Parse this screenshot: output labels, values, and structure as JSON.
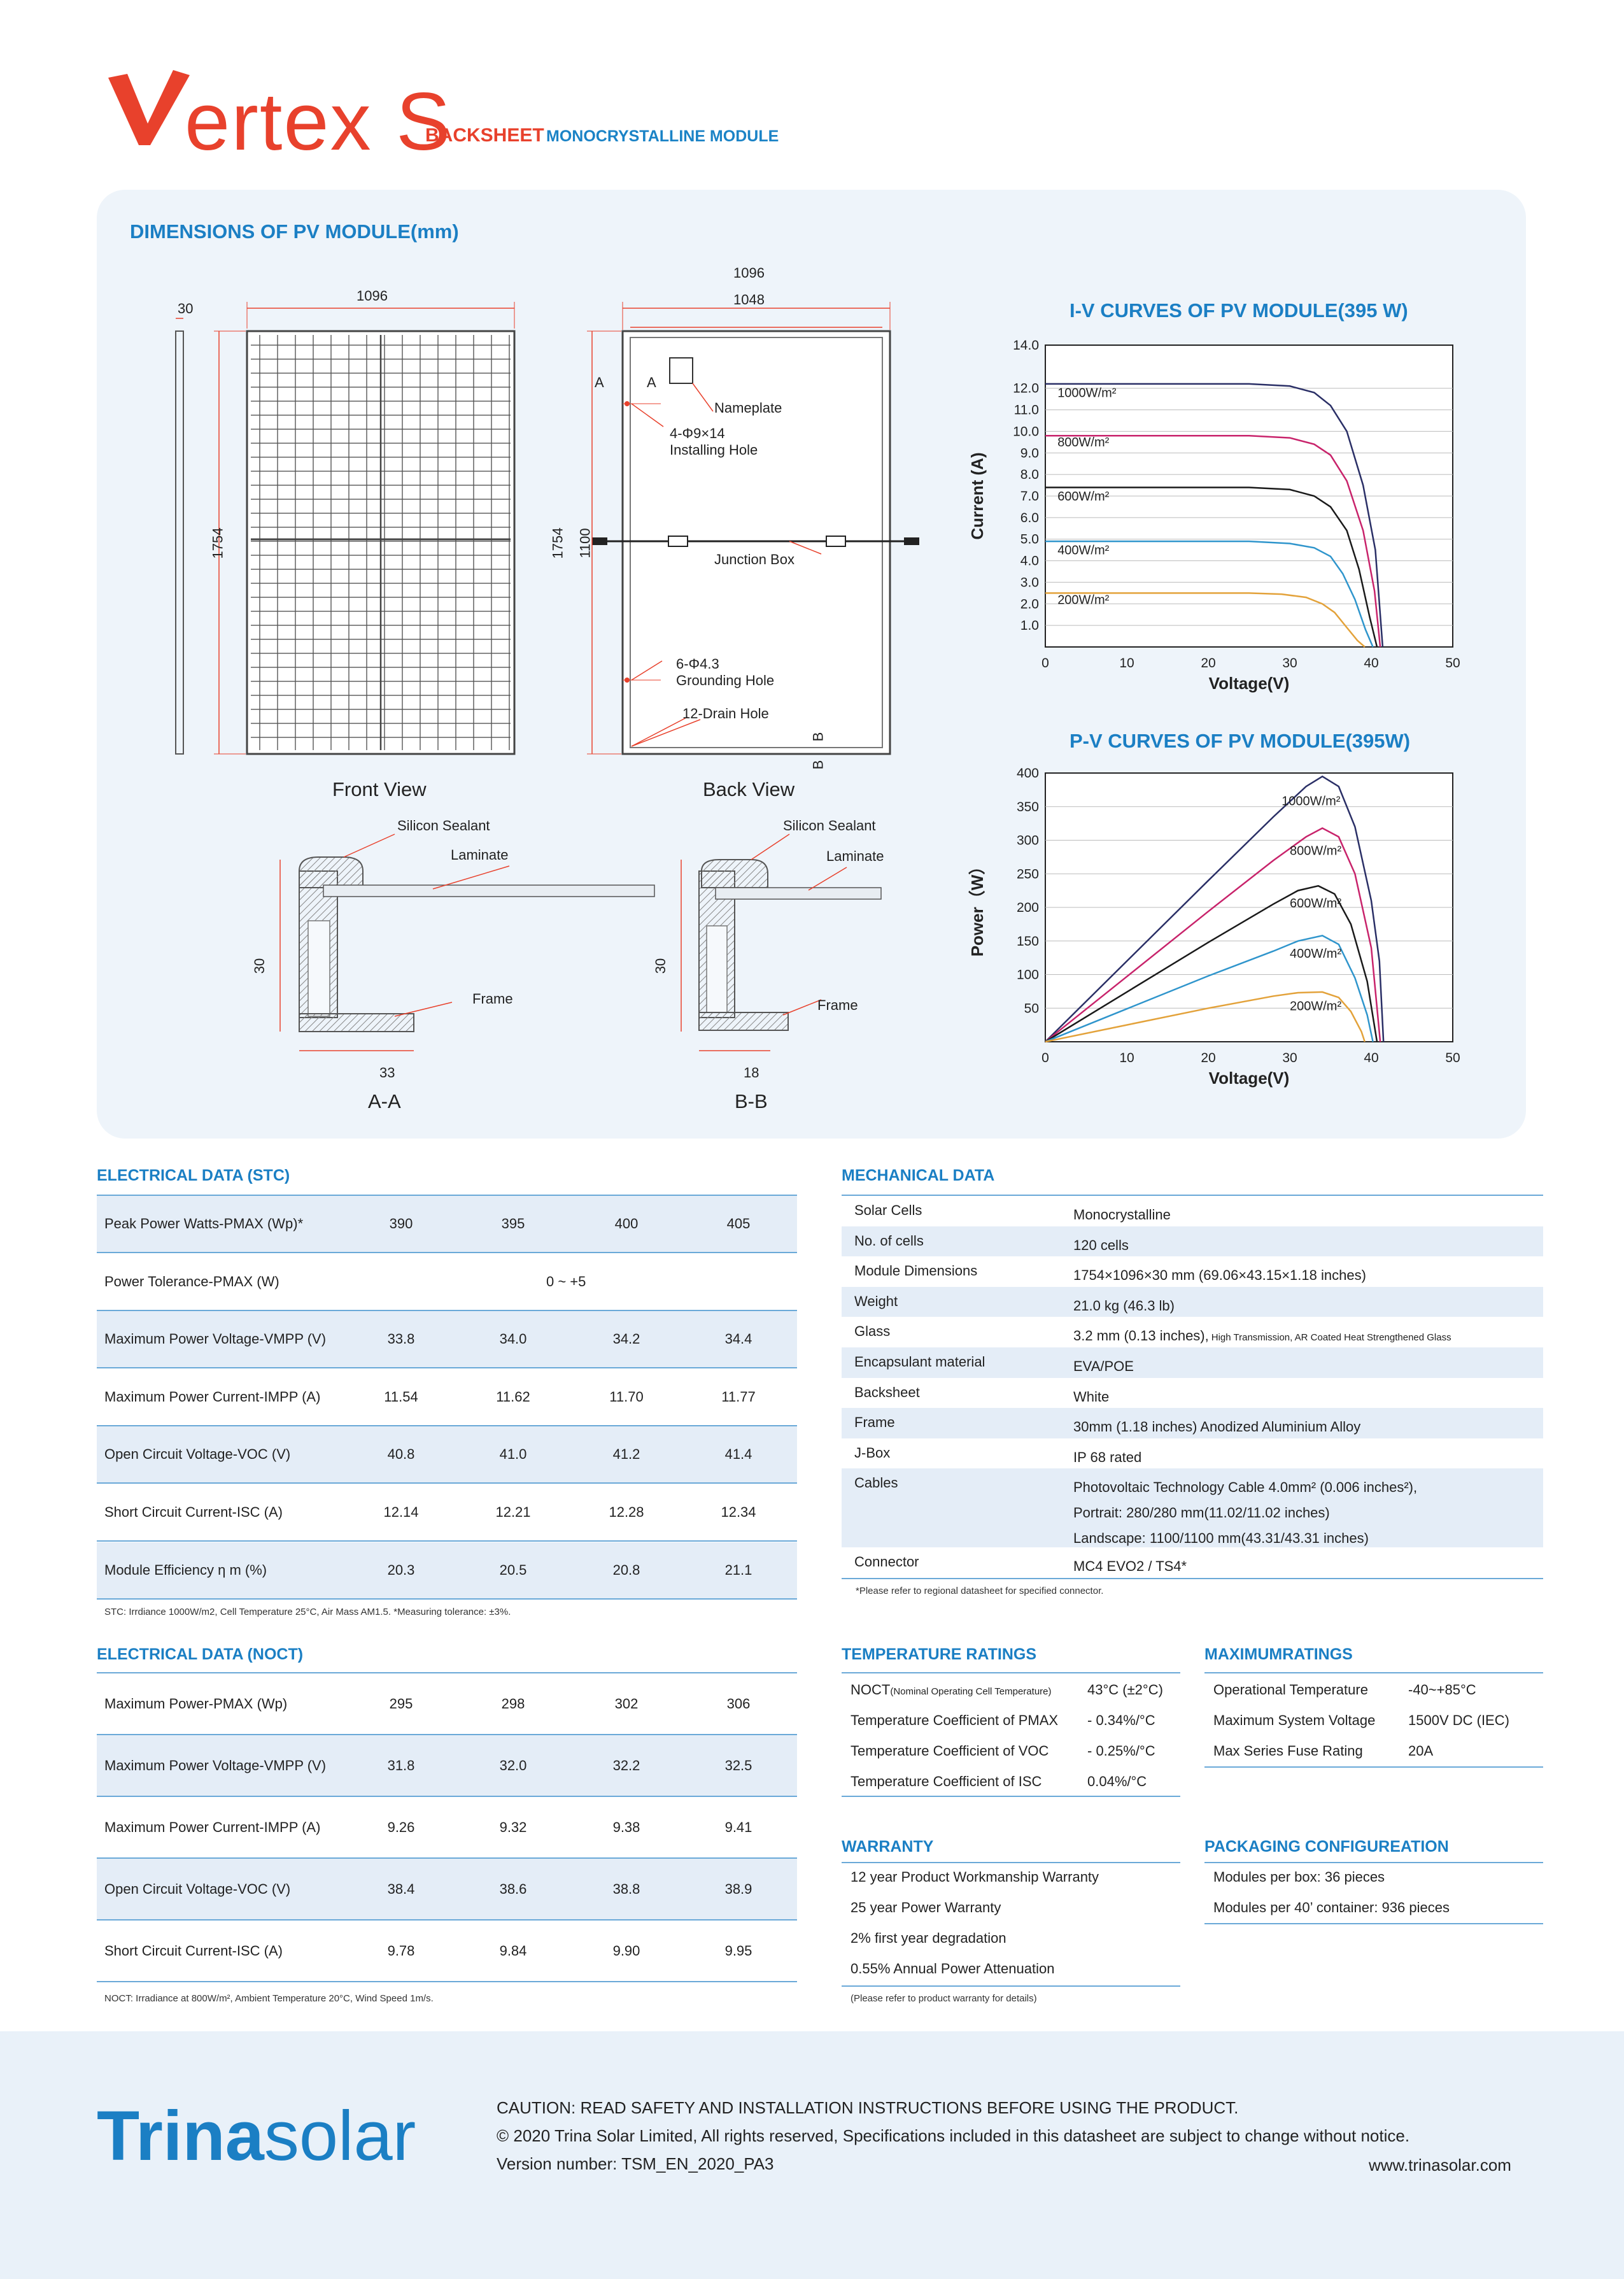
{
  "header": {
    "brand": "ertex S",
    "product_type_red": "BACKSHEET",
    "product_type_blue": "MONOCRYSTALLINE MODULE"
  },
  "dimensions": {
    "title": "DIMENSIONS OF PV MODULE(mm)",
    "front_width": "1096",
    "side_thickness": "30",
    "front_height": "1754",
    "back_outer_width": "1096",
    "back_inner_width": "1048",
    "back_height": "1754",
    "back_hole_span": "1100",
    "section_a_top": "A",
    "section_a_bot": "A",
    "section_b_top": "B",
    "section_b_bot": "B",
    "nameplate": "Nameplate",
    "installing_hole_spec": "4-Φ9×14",
    "installing_hole": "Installing Hole",
    "junction_box": "Junction Box",
    "grounding_hole_spec": "6-Φ4.3",
    "grounding_hole": "Grounding Hole",
    "drain_hole": "12-Drain Hole",
    "front_view": "Front View",
    "back_view": "Back View",
    "aa": {
      "sealant": "Silicon Sealant",
      "laminate": "Laminate",
      "frame": "Frame",
      "height": "30",
      "width": "33",
      "caption": "A-A"
    },
    "bb": {
      "sealant": "Silicon Sealant",
      "laminate": "Laminate",
      "frame": "Frame",
      "height": "30",
      "width": "18",
      "caption": "B-B"
    }
  },
  "chart_data": [
    {
      "type": "line",
      "title": "I-V CURVES OF PV MODULE(395 W)",
      "xlabel": "Voltage(V)",
      "ylabel": "Current (A)",
      "xlim": [
        0,
        50
      ],
      "ylim": [
        0,
        14
      ],
      "xticks": [
        "0",
        "10",
        "20",
        "30",
        "40",
        "50"
      ],
      "yticks": [
        "1.0",
        "2.0",
        "3.0",
        "4.0",
        "5.0",
        "6.0",
        "7.0",
        "8.0",
        "9.0",
        "10.0",
        "11.0",
        "12.0",
        "14.0"
      ],
      "grid": true,
      "series": [
        {
          "name": "1000W/m²",
          "color": "#2a2f66",
          "points": [
            [
              0,
              12.2
            ],
            [
              25,
              12.2
            ],
            [
              30,
              12.1
            ],
            [
              33,
              11.8
            ],
            [
              35,
              11.2
            ],
            [
              37,
              10.0
            ],
            [
              39,
              7.5
            ],
            [
              40.5,
              4.5
            ],
            [
              41.4,
              0
            ]
          ]
        },
        {
          "name": "800W/m²",
          "color": "#c8236b",
          "points": [
            [
              0,
              9.8
            ],
            [
              25,
              9.8
            ],
            [
              30,
              9.7
            ],
            [
              33,
              9.4
            ],
            [
              35,
              8.9
            ],
            [
              37,
              7.7
            ],
            [
              39,
              5.4
            ],
            [
              40.4,
              2.6
            ],
            [
              41.1,
              0
            ]
          ]
        },
        {
          "name": "600W/m²",
          "color": "#1a1a1a",
          "points": [
            [
              0,
              7.4
            ],
            [
              25,
              7.4
            ],
            [
              30,
              7.3
            ],
            [
              33,
              7.0
            ],
            [
              35,
              6.5
            ],
            [
              37,
              5.4
            ],
            [
              38.5,
              3.6
            ],
            [
              39.8,
              1.4
            ],
            [
              40.7,
              0
            ]
          ]
        },
        {
          "name": "400W/m²",
          "color": "#2f95cc",
          "points": [
            [
              0,
              4.9
            ],
            [
              25,
              4.9
            ],
            [
              30,
              4.8
            ],
            [
              33,
              4.6
            ],
            [
              35,
              4.2
            ],
            [
              36.5,
              3.4
            ],
            [
              38,
              2.2
            ],
            [
              39.3,
              0.8
            ],
            [
              40.2,
              0
            ]
          ]
        },
        {
          "name": "200W/m²",
          "color": "#e3a23a",
          "points": [
            [
              0,
              2.5
            ],
            [
              25,
              2.5
            ],
            [
              29,
              2.45
            ],
            [
              32,
              2.3
            ],
            [
              34,
              2.0
            ],
            [
              35.5,
              1.6
            ],
            [
              37,
              0.9
            ],
            [
              38.3,
              0.3
            ],
            [
              39.2,
              0
            ]
          ]
        }
      ]
    },
    {
      "type": "line",
      "title": "P-V CURVES OF PV MODULE(395W)",
      "xlabel": "Voltage(V)",
      "ylabel": "Power（W）",
      "xlim": [
        0,
        50
      ],
      "ylim": [
        0,
        400
      ],
      "xticks": [
        "0",
        "10",
        "20",
        "30",
        "40",
        "50"
      ],
      "yticks": [
        "50",
        "100",
        "150",
        "200",
        "250",
        "300",
        "350",
        "400"
      ],
      "grid": true,
      "series": [
        {
          "name": "1000W/m²",
          "color": "#2a2f66",
          "points": [
            [
              0,
              0
            ],
            [
              10,
              120
            ],
            [
              20,
              240
            ],
            [
              28,
              335
            ],
            [
              32,
              380
            ],
            [
              34,
              395
            ],
            [
              36,
              380
            ],
            [
              38,
              320
            ],
            [
              40,
              210
            ],
            [
              41,
              120
            ],
            [
              41.5,
              0
            ]
          ]
        },
        {
          "name": "800W/m²",
          "color": "#c8236b",
          "points": [
            [
              0,
              0
            ],
            [
              10,
              97
            ],
            [
              20,
              194
            ],
            [
              28,
              270
            ],
            [
              32,
              305
            ],
            [
              34,
              318
            ],
            [
              36,
              305
            ],
            [
              38,
              250
            ],
            [
              40,
              140
            ],
            [
              41.1,
              0
            ]
          ]
        },
        {
          "name": "600W/m²",
          "color": "#1a1a1a",
          "points": [
            [
              0,
              0
            ],
            [
              10,
              74
            ],
            [
              20,
              148
            ],
            [
              28,
              205
            ],
            [
              31,
              225
            ],
            [
              33.5,
              232
            ],
            [
              35.5,
              220
            ],
            [
              37.5,
              175
            ],
            [
              39.5,
              90
            ],
            [
              40.7,
              0
            ]
          ]
        },
        {
          "name": "400W/m²",
          "color": "#2f95cc",
          "points": [
            [
              0,
              0
            ],
            [
              10,
              49
            ],
            [
              20,
              98
            ],
            [
              28,
              135
            ],
            [
              31,
              150
            ],
            [
              34,
              158
            ],
            [
              36,
              145
            ],
            [
              38,
              95
            ],
            [
              39.5,
              40
            ],
            [
              40.2,
              0
            ]
          ]
        },
        {
          "name": "200W/m²",
          "color": "#e3a23a",
          "points": [
            [
              0,
              0
            ],
            [
              10,
              25
            ],
            [
              20,
              50
            ],
            [
              28,
              68
            ],
            [
              31,
              73
            ],
            [
              34,
              74
            ],
            [
              36,
              66
            ],
            [
              37.5,
              45
            ],
            [
              38.8,
              15
            ],
            [
              39.2,
              0
            ]
          ]
        }
      ]
    }
  ],
  "electrical_stc": {
    "title": "ELECTRICAL DATA (STC)",
    "rows": [
      {
        "label": "Peak Power Watts-PMAX (Wp)*",
        "values": [
          "390",
          "395",
          "400",
          "405"
        ]
      },
      {
        "label": "Power Tolerance-PMAX (W)",
        "span": "0 ~ +5"
      },
      {
        "label": "Maximum Power Voltage-VMPP (V)",
        "values": [
          "33.8",
          "34.0",
          "34.2",
          "34.4"
        ]
      },
      {
        "label": "Maximum Power Current-IMPP (A)",
        "values": [
          "11.54",
          "11.62",
          "11.70",
          "11.77"
        ]
      },
      {
        "label": "Open Circuit Voltage-VOC (V)",
        "values": [
          "40.8",
          "41.0",
          "41.2",
          "41.4"
        ]
      },
      {
        "label": "Short Circuit Current-ISC (A)",
        "values": [
          "12.14",
          "12.21",
          "12.28",
          "12.34"
        ]
      },
      {
        "label": "Module Efficiency η m (%)",
        "values": [
          "20.3",
          "20.5",
          "20.8",
          "21.1"
        ]
      }
    ],
    "note": "STC: Irrdiance 1000W/m2, Cell Temperature 25°C, Air Mass AM1.5.   *Measuring tolerance: ±3%."
  },
  "electrical_noct": {
    "title": "ELECTRICAL DATA (NOCT)",
    "rows": [
      {
        "label": "Maximum Power-PMAX (Wp)",
        "values": [
          "295",
          "298",
          "302",
          "306"
        ]
      },
      {
        "label": "Maximum Power Voltage-VMPP (V)",
        "values": [
          "31.8",
          "32.0",
          "32.2",
          "32.5"
        ]
      },
      {
        "label": "Maximum Power Current-IMPP (A)",
        "values": [
          "9.26",
          "9.32",
          "9.38",
          "9.41"
        ]
      },
      {
        "label": "Open Circuit Voltage-VOC (V)",
        "values": [
          "38.4",
          "38.6",
          "38.8",
          "38.9"
        ]
      },
      {
        "label": "Short Circuit Current-ISC (A)",
        "values": [
          "9.78",
          "9.84",
          "9.90",
          "9.95"
        ]
      }
    ],
    "note": "NOCT: Irradiance at 800W/m², Ambient Temperature 20°C, Wind Speed 1m/s."
  },
  "mechanical": {
    "title": "MECHANICAL DATA",
    "rows": [
      {
        "label": "Solar Cells",
        "value": "Monocrystalline"
      },
      {
        "label": "No. of cells",
        "value": "120 cells"
      },
      {
        "label": "Module Dimensions",
        "value": "1754×1096×30 mm (69.06×43.15×1.18 inches)"
      },
      {
        "label": "Weight",
        "value": "21.0 kg (46.3 lb)"
      },
      {
        "label": "Glass",
        "value": "3.2 mm (0.13 inches),",
        "small": "High Transmission, AR Coated Heat Strengthened Glass"
      },
      {
        "label": "Encapsulant material",
        "value": "EVA/POE"
      },
      {
        "label": "Backsheet",
        "value": "White"
      },
      {
        "label": "Frame",
        "value": "30mm (1.18 inches)  Anodized  Aluminium Alloy"
      },
      {
        "label": "J-Box",
        "value": "IP 68 rated"
      },
      {
        "label": "Cables",
        "value": "Photovoltaic Technology Cable 4.0mm² (0.006 inches²),",
        "line2": "Portrait: 280/280 mm(11.02/11.02 inches)",
        "line3": "Landscape: 1100/1100 mm(43.31/43.31 inches)"
      },
      {
        "label": "Connector",
        "value": "MC4 EVO2 / TS4*"
      }
    ],
    "note": "*Please refer to regional datasheet for specified connector."
  },
  "temperature": {
    "title": "TEMPERATURE RATINGS",
    "rows": [
      {
        "label": "NOCT",
        "small": "(Nominal Operating Cell Temperature)",
        "value": "43°C (±2°C)"
      },
      {
        "label": "Temperature Coefficient of PMAX",
        "value": "- 0.34%/°C"
      },
      {
        "label": "Temperature Coefficient of VOC",
        "value": "- 0.25%/°C"
      },
      {
        "label": "Temperature Coefficient of ISC",
        "value": "0.04%/°C"
      }
    ]
  },
  "maximum": {
    "title": "MAXIMUMRATINGS",
    "rows": [
      {
        "label": "Operational Temperature",
        "value": "-40~+85°C"
      },
      {
        "label": "Maximum System Voltage",
        "value": "1500V DC (IEC)"
      },
      {
        "label": "Max Series Fuse Rating",
        "value": "20A"
      }
    ]
  },
  "warranty": {
    "title": "WARRANTY",
    "items": [
      "12 year Product Workmanship Warranty",
      "25 year Power Warranty",
      "2% first year degradation",
      "0.55% Annual Power Attenuation"
    ],
    "note": "(Please refer to product warranty for details)"
  },
  "packaging": {
    "title": "PACKAGING CONFIGUREATION",
    "items": [
      "Modules per box: 36 pieces",
      "Modules per 40’ container: 936 pieces"
    ]
  },
  "footer": {
    "brand_bold": "Trina",
    "brand_light": "solar",
    "caution": "CAUTION: READ SAFETY AND INSTALLATION INSTRUCTIONS BEFORE USING THE PRODUCT.",
    "copyright": "© 2020 Trina Solar Limited, All rights reserved, Specifications included in this datasheet are subject to change without notice.",
    "version": "Version number: TSM_EN_2020_PA3",
    "website": "www.trinasolar.com"
  },
  "colors": {
    "brand_red": "#e8412c",
    "brand_blue": "#1b7fc4",
    "panel_bg": "#eef4fa",
    "row_shade": "#e4edf7"
  }
}
